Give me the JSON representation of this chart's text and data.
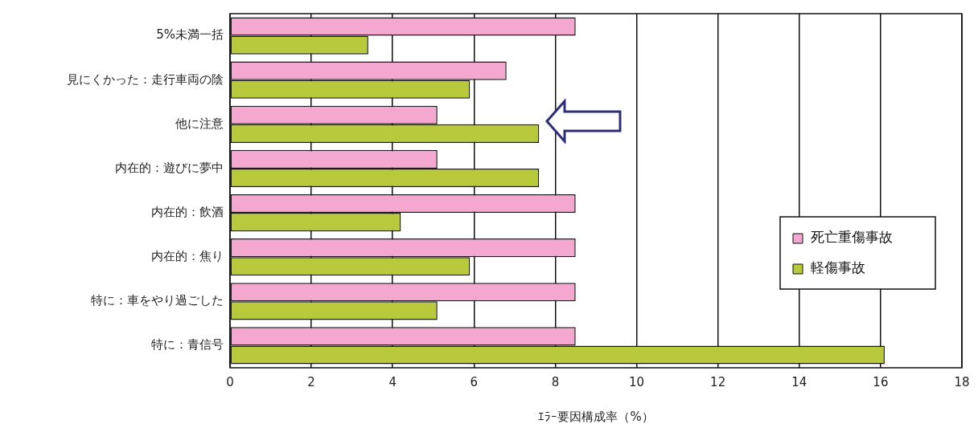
{
  "chart_data": {
    "type": "bar",
    "orientation": "horizontal",
    "xlabel": "ｴﾗｰ要因構成率（%）",
    "categories": [
      "5%未満一括",
      "見にくかった：走行車両の陰",
      "他に注意",
      "内在的：遊びに夢中",
      "内在的：飲酒",
      "内在的：焦り",
      "特に：車をやり過ごした",
      "特に：青信号"
    ],
    "series": [
      {
        "name": "死亡重傷事故",
        "color": "#f4a8d0",
        "values": [
          8.5,
          6.8,
          5.1,
          5.1,
          8.5,
          8.5,
          8.5,
          8.5
        ]
      },
      {
        "name": "軽傷事故",
        "color": "#b9c93c",
        "values": [
          3.4,
          5.9,
          7.6,
          7.6,
          4.2,
          5.9,
          5.1,
          16.1
        ]
      }
    ],
    "xlim": [
      0,
      18
    ],
    "xticks": [
      0,
      2,
      4,
      6,
      8,
      10,
      12,
      14,
      16,
      18
    ],
    "grid": "x",
    "legend": "right"
  }
}
